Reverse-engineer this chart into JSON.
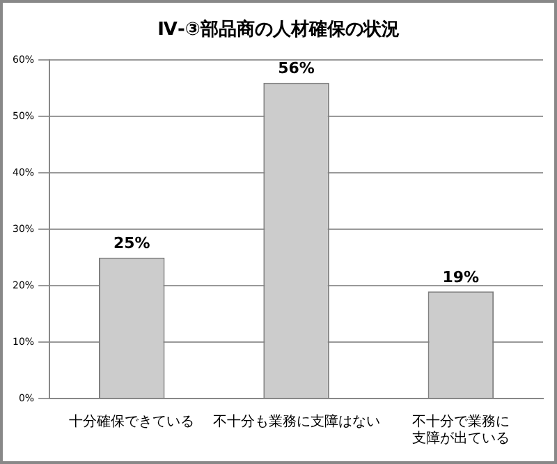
{
  "chart_data": {
    "type": "bar",
    "title": "Ⅳ-③部品商の人材確保の状況",
    "categories": [
      "十分確保できている",
      "不十分も業務に支障はない",
      "不十分で業務に支障が出ている"
    ],
    "values": [
      25,
      56,
      19
    ],
    "color": "#cccccc",
    "value_labels": [
      "25%",
      "56%",
      "19%"
    ],
    "ylim": [
      0,
      60
    ],
    "yticks": [
      {
        "value": 0,
        "label": "0%"
      },
      {
        "value": 10,
        "label": "10%"
      },
      {
        "value": 20,
        "label": "20%"
      },
      {
        "value": 30,
        "label": "30%"
      },
      {
        "value": 40,
        "label": "40%"
      },
      {
        "value": 50,
        "label": "50%"
      },
      {
        "value": 60,
        "label": "60%"
      }
    ],
    "grid": "y",
    "legend": false
  }
}
